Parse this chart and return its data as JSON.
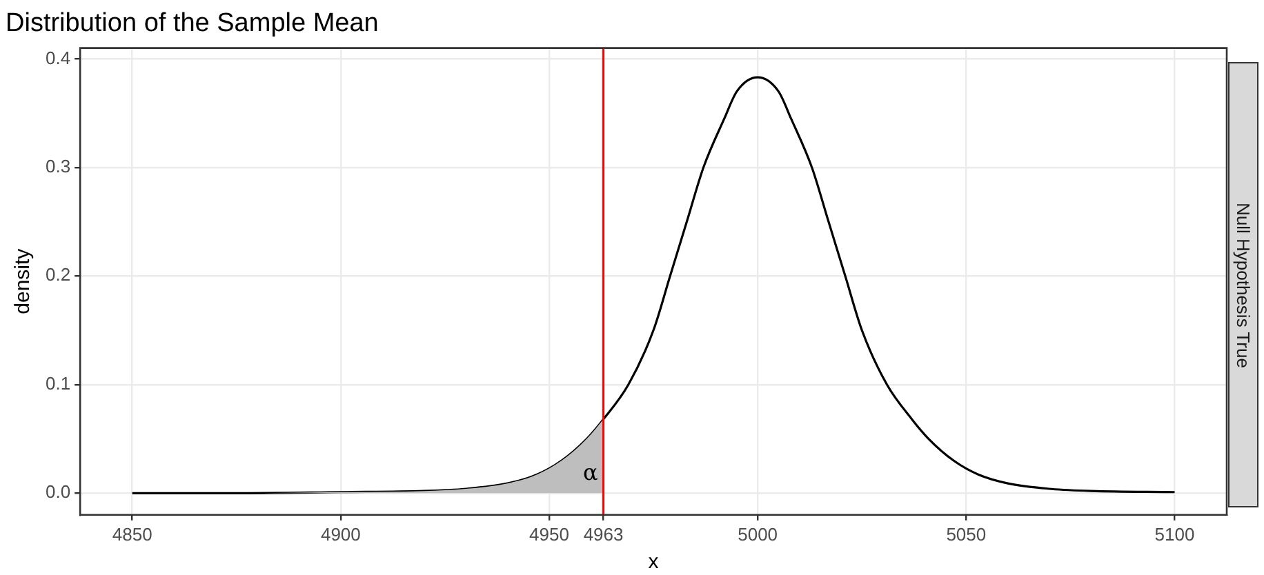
{
  "chart_data": {
    "type": "line",
    "title": "Distribution of the Sample Mean",
    "xlabel": "x",
    "ylabel": "density",
    "xlim": [
      4837.5,
      5112.5
    ],
    "xticks": [
      4850,
      4900,
      4950,
      4963,
      5000,
      5050,
      5100
    ],
    "ylim": [
      -0.02,
      0.41
    ],
    "yticks": [
      {
        "value": 0,
        "label": "0.0"
      },
      {
        "value": 0.1,
        "label": "0.1"
      },
      {
        "value": 0.2,
        "label": "0.2"
      },
      {
        "value": 0.3,
        "label": "0.3"
      },
      {
        "value": 0.4,
        "label": "0.4"
      }
    ],
    "grid": true,
    "legend": false,
    "marker": "none",
    "line_style": "solid",
    "series": [
      {
        "type": "area",
        "color": "#bebebe",
        "x": [
          4850,
          4875,
          4900,
          4920,
          4930,
          4940,
          4947,
          4953,
          4959,
          4963
        ],
        "values": [
          0,
          0,
          0.001,
          0.002,
          0.004,
          0.009,
          0.017,
          0.03,
          0.05,
          0.068
        ]
      },
      {
        "color": "#000000",
        "x": [
          4850,
          4875,
          4900,
          4920,
          4930,
          4940,
          4947,
          4953,
          4959,
          4963,
          4969,
          4975,
          4979,
          4983,
          4987,
          4992,
          4995,
          5000,
          5005,
          5008,
          5013,
          5017,
          5021,
          5025,
          5031,
          5037,
          5041,
          5047,
          5053,
          5060,
          5070,
          5080,
          5100
        ],
        "values": [
          0,
          0,
          0.001,
          0.002,
          0.004,
          0.009,
          0.017,
          0.03,
          0.05,
          0.068,
          0.1,
          0.15,
          0.2,
          0.25,
          0.3,
          0.345,
          0.37,
          0.383,
          0.37,
          0.345,
          0.3,
          0.25,
          0.2,
          0.15,
          0.1,
          0.068,
          0.05,
          0.03,
          0.017,
          0.009,
          0.004,
          0.002,
          0.001
        ]
      }
    ],
    "ref_lines": [
      {
        "axis": "x",
        "value": 4963,
        "color": "#ff0000"
      }
    ],
    "annotations": [
      "α",
      "Null Hypothesis True"
    ]
  }
}
